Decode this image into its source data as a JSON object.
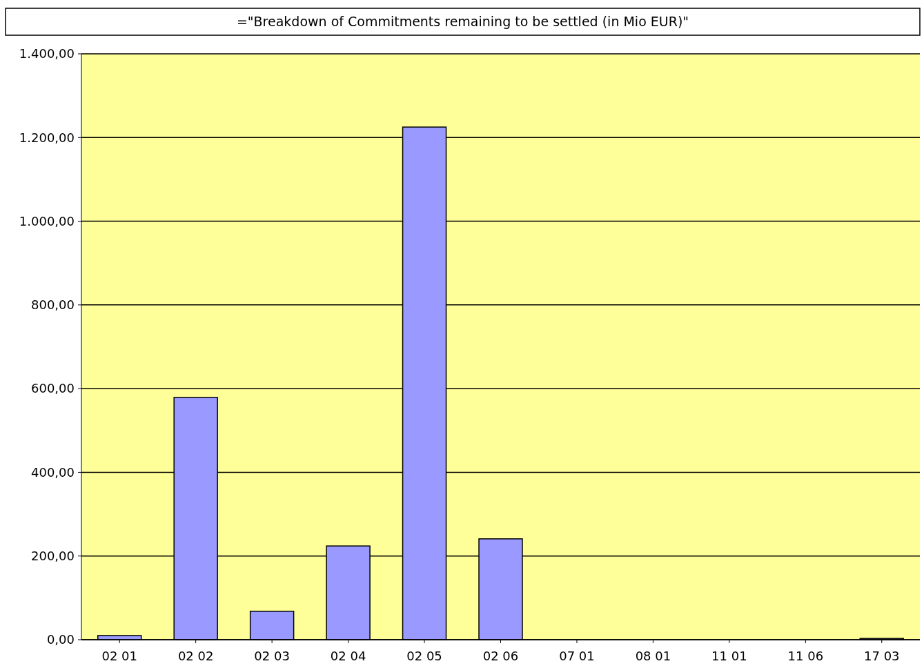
{
  "chart_data": {
    "type": "bar",
    "title": "=\"Breakdown of Commitments remaining to be settled (in Mio EUR)\"",
    "categories": [
      "02 01",
      "02 02",
      "02 03",
      "02 04",
      "02 05",
      "02 06",
      "07 01",
      "08 01",
      "11 01",
      "11 06",
      "17 03"
    ],
    "values": [
      10,
      579,
      68,
      224,
      1225,
      241,
      0,
      0,
      0,
      0,
      3
    ],
    "color": "#9999ff",
    "ylim": [
      0,
      1400
    ],
    "yticks": [
      {
        "value": 0,
        "label": "0,00"
      },
      {
        "value": 200,
        "label": "200,00"
      },
      {
        "value": 400,
        "label": "400,00"
      },
      {
        "value": 600,
        "label": "600,00"
      },
      {
        "value": 800,
        "label": "800,00"
      },
      {
        "value": 1000,
        "label": "1.000,00"
      },
      {
        "value": 1200,
        "label": "1.200,00"
      },
      {
        "value": 1400,
        "label": "1.400,00"
      }
    ],
    "grid": "y"
  }
}
